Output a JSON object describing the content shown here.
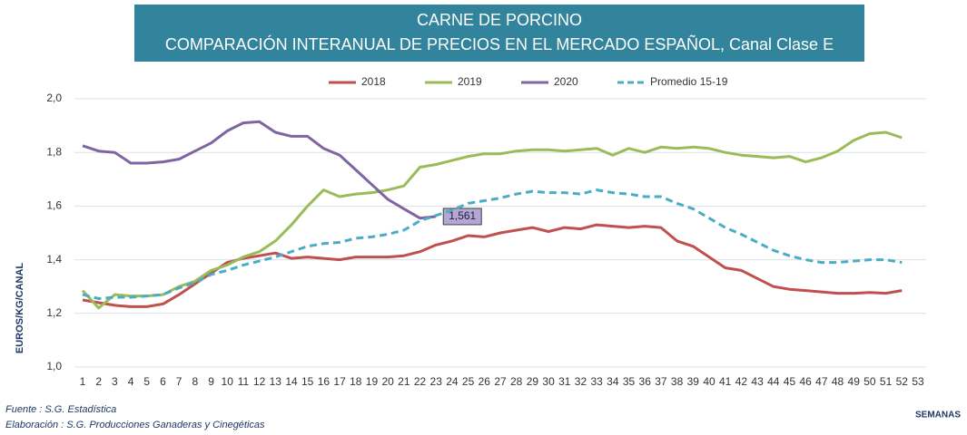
{
  "chart_data": {
    "type": "line",
    "title": "CARNE DE PORCINO",
    "subtitle": "COMPARACIÓN INTERANUAL DE PRECIOS EN EL MERCADO ESPAÑOL, Canal Clase E",
    "y_label": "EUROS/KG/CANAL",
    "x_label": "SEMANAS",
    "source": "Fuente : S.G. Estadística",
    "credit": "Elaboración : S.G. Producciones Ganaderas y Cinegéticas",
    "categories": [
      1,
      2,
      3,
      4,
      5,
      6,
      7,
      8,
      9,
      10,
      11,
      12,
      13,
      14,
      15,
      16,
      17,
      18,
      19,
      20,
      21,
      22,
      23,
      24,
      25,
      26,
      27,
      28,
      29,
      30,
      31,
      32,
      33,
      34,
      35,
      36,
      37,
      38,
      39,
      40,
      41,
      42,
      43,
      44,
      45,
      46,
      47,
      48,
      49,
      50,
      51,
      52,
      53
    ],
    "series": [
      {
        "name": "2018",
        "color": "#c0504d",
        "dashed": false,
        "values": [
          1.25,
          1.24,
          1.23,
          1.225,
          1.225,
          1.235,
          1.27,
          1.31,
          1.35,
          1.39,
          1.405,
          1.415,
          1.425,
          1.405,
          1.41,
          1.405,
          1.4,
          1.41,
          1.41,
          1.41,
          1.415,
          1.43,
          1.455,
          1.47,
          1.49,
          1.485,
          1.5,
          1.51,
          1.52,
          1.505,
          1.52,
          1.515,
          1.53,
          1.525,
          1.52,
          1.525,
          1.52,
          1.47,
          1.45,
          1.41,
          1.37,
          1.36,
          1.33,
          1.3,
          1.29,
          1.285,
          1.28,
          1.275,
          1.275,
          1.278,
          1.275,
          1.285,
          null
        ]
      },
      {
        "name": "2019",
        "color": "#9bbb59",
        "dashed": false,
        "values": [
          1.285,
          1.22,
          1.27,
          1.265,
          1.265,
          1.27,
          1.3,
          1.32,
          1.36,
          1.38,
          1.41,
          1.43,
          1.47,
          1.53,
          1.6,
          1.66,
          1.635,
          1.645,
          1.65,
          1.66,
          1.675,
          1.745,
          1.755,
          1.77,
          1.785,
          1.795,
          1.795,
          1.805,
          1.81,
          1.81,
          1.805,
          1.81,
          1.815,
          1.79,
          1.815,
          1.8,
          1.82,
          1.815,
          1.82,
          1.815,
          1.8,
          1.79,
          1.785,
          1.78,
          1.785,
          1.765,
          1.78,
          1.805,
          1.845,
          1.87,
          1.875,
          1.855,
          null
        ]
      },
      {
        "name": "2020",
        "color": "#8064a2",
        "dashed": false,
        "values": [
          1.825,
          1.805,
          1.8,
          1.76,
          1.76,
          1.765,
          1.775,
          1.805,
          1.835,
          1.88,
          1.91,
          1.915,
          1.875,
          1.86,
          1.86,
          1.815,
          1.79,
          1.735,
          1.68,
          1.625,
          1.59,
          1.555,
          1.561,
          null,
          null,
          null,
          null,
          null,
          null,
          null,
          null,
          null,
          null,
          null,
          null,
          null,
          null,
          null,
          null,
          null,
          null,
          null,
          null,
          null,
          null,
          null,
          null,
          null,
          null,
          null,
          null,
          null,
          null
        ],
        "value_labels": [
          null,
          null,
          null,
          null,
          null,
          null,
          null,
          null,
          null,
          null,
          null,
          null,
          null,
          null,
          null,
          null,
          null,
          null,
          null,
          null,
          null,
          null,
          "1,561",
          null,
          null,
          null,
          null,
          null,
          null,
          null,
          null,
          null,
          null,
          null,
          null,
          null,
          null,
          null,
          null,
          null,
          null,
          null,
          null,
          null,
          null,
          null,
          null,
          null,
          null,
          null,
          null,
          null,
          null
        ]
      },
      {
        "name": "Promedio 15-19",
        "color": "#4bacc6",
        "dashed": true,
        "values": [
          1.27,
          1.255,
          1.26,
          1.26,
          1.265,
          1.27,
          1.295,
          1.315,
          1.345,
          1.36,
          1.38,
          1.395,
          1.41,
          1.43,
          1.45,
          1.46,
          1.465,
          1.48,
          1.485,
          1.495,
          1.51,
          1.545,
          1.565,
          1.585,
          1.61,
          1.62,
          1.63,
          1.645,
          1.655,
          1.65,
          1.65,
          1.645,
          1.66,
          1.65,
          1.645,
          1.635,
          1.635,
          1.61,
          1.59,
          1.555,
          1.52,
          1.495,
          1.465,
          1.435,
          1.415,
          1.4,
          1.39,
          1.39,
          1.395,
          1.4,
          1.4,
          1.39,
          null
        ]
      }
    ],
    "ylim": [
      1.0,
      2.0
    ],
    "yticks": [
      {
        "value": 1.0,
        "label": "1,0"
      },
      {
        "value": 1.2,
        "label": "1,2"
      },
      {
        "value": 1.4,
        "label": "1,4"
      },
      {
        "value": 1.6,
        "label": "1,6"
      },
      {
        "value": 1.8,
        "label": "1,8"
      },
      {
        "value": 2.0,
        "label": "2,0"
      }
    ],
    "grid": true,
    "legend": "top"
  }
}
